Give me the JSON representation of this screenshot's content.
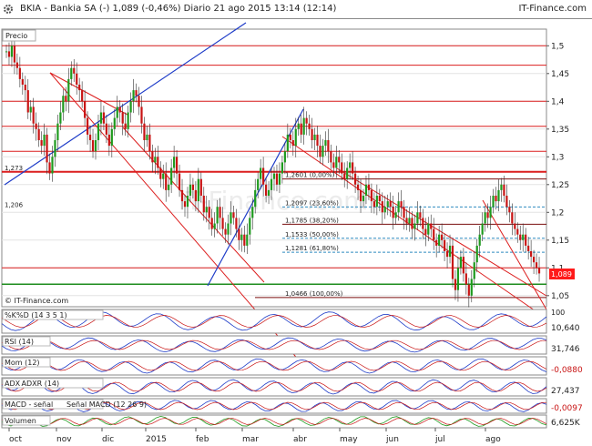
{
  "header": {
    "title": "BKIA - Bankia SA (-)    1,089 (-0,46%)    Diario  21 ago 2015 13:14 (12:14)",
    "brand": "IT-Finance.com"
  },
  "colors": {
    "candle_up": "#1e9a1e",
    "candle_down": "#c81414",
    "trend_red": "#dc1e1e",
    "trend_blue": "#1e3cc8",
    "fib_line": "#7a0f0f",
    "fib_dashed": "#2e8bc0",
    "last_price_bg": "#ff1a1a",
    "green_line": "#1e8c1e"
  },
  "chart_data": {
    "type": "candlestick",
    "title": "Precio",
    "ylim": [
      1.03,
      1.53
    ],
    "y_ticks": [
      1.05,
      1.1,
      1.15,
      1.2,
      1.25,
      1.3,
      1.35,
      1.4,
      1.45,
      1.5
    ],
    "y_tick_labels": [
      "1,05",
      "1,1",
      "1,15",
      "1,2",
      "1,25",
      "1,3",
      "1,35",
      "1,4",
      "1,45",
      "1,5"
    ],
    "x_tick_labels": [
      "oct",
      "nov",
      "dic",
      "2015",
      "feb",
      "mar",
      "abr",
      "may",
      "jun",
      "jul",
      "ago"
    ],
    "last_price": 1.089,
    "last_price_label": "1,089",
    "watermark": "IT-Finance.com",
    "left_levels": [
      {
        "label": "1,273",
        "value": 1.273
      },
      {
        "label": "1,206",
        "value": 1.206
      }
    ],
    "fibonacci": [
      {
        "label": "1,2601 (0,00%)",
        "value": 1.2601
      },
      {
        "label": "1,2097 (23,60%)",
        "value": 1.2097
      },
      {
        "label": "1,1785 (38,20%)",
        "value": 1.1785
      },
      {
        "label": "1,1533 (50,00%)",
        "value": 1.1533
      },
      {
        "label": "1,1281 (61,80%)",
        "value": 1.1281
      },
      {
        "label": "1,0466 (100,00%)",
        "value": 1.0466
      }
    ],
    "closes": [
      1.49,
      1.48,
      1.5,
      1.47,
      1.46,
      1.44,
      1.43,
      1.42,
      1.38,
      1.39,
      1.36,
      1.35,
      1.33,
      1.32,
      1.34,
      1.29,
      1.27,
      1.3,
      1.33,
      1.36,
      1.38,
      1.41,
      1.4,
      1.44,
      1.46,
      1.45,
      1.43,
      1.42,
      1.4,
      1.37,
      1.34,
      1.33,
      1.31,
      1.33,
      1.36,
      1.38,
      1.36,
      1.34,
      1.32,
      1.35,
      1.37,
      1.39,
      1.38,
      1.36,
      1.35,
      1.38,
      1.4,
      1.42,
      1.41,
      1.39,
      1.36,
      1.33,
      1.34,
      1.31,
      1.29,
      1.3,
      1.28,
      1.26,
      1.27,
      1.24,
      1.25,
      1.28,
      1.3,
      1.27,
      1.24,
      1.22,
      1.21,
      1.23,
      1.25,
      1.24,
      1.22,
      1.26,
      1.23,
      1.2,
      1.21,
      1.19,
      1.17,
      1.18,
      1.21,
      1.19,
      1.17,
      1.16,
      1.18,
      1.2,
      1.19,
      1.17,
      1.15,
      1.16,
      1.14,
      1.16,
      1.19,
      1.21,
      1.24,
      1.26,
      1.28,
      1.25,
      1.23,
      1.24,
      1.26,
      1.27,
      1.25,
      1.27,
      1.29,
      1.31,
      1.34,
      1.33,
      1.32,
      1.35,
      1.36,
      1.34,
      1.37,
      1.36,
      1.35,
      1.33,
      1.34,
      1.32,
      1.3,
      1.32,
      1.33,
      1.31,
      1.29,
      1.28,
      1.3,
      1.29,
      1.27,
      1.26,
      1.28,
      1.29,
      1.27,
      1.25,
      1.24,
      1.22,
      1.23,
      1.25,
      1.24,
      1.22,
      1.21,
      1.23,
      1.22,
      1.2,
      1.21,
      1.22,
      1.21,
      1.19,
      1.2,
      1.22,
      1.21,
      1.19,
      1.18,
      1.19,
      1.17,
      1.18,
      1.2,
      1.19,
      1.17,
      1.16,
      1.18,
      1.17,
      1.15,
      1.14,
      1.16,
      1.15,
      1.13,
      1.12,
      1.14,
      1.08,
      1.06,
      1.1,
      1.12,
      1.09,
      1.07,
      1.05,
      1.08,
      1.11,
      1.14,
      1.16,
      1.18,
      1.2,
      1.19,
      1.21,
      1.23,
      1.22,
      1.24,
      1.25,
      1.23,
      1.21,
      1.2,
      1.18,
      1.17,
      1.16,
      1.15,
      1.16,
      1.14,
      1.13,
      1.12,
      1.11,
      1.1,
      1.09
    ]
  },
  "indicators": [
    {
      "label": "%K",
      "label2": "%D (14 3 5 1)",
      "value": "10,640",
      "value_top": "100",
      "negative": false
    },
    {
      "label": "RSI (14)",
      "label2": "",
      "value": "31,746",
      "value_top": "",
      "negative": false
    },
    {
      "label": "Mom (12)",
      "label2": "",
      "value": "-0,0880",
      "value_top": "",
      "negative": true
    },
    {
      "label": "ADX",
      "label2": "ADXR (14)",
      "value": "27,437",
      "value_top": "",
      "negative": false
    },
    {
      "label": "MACD - señal",
      "label2": "Señal  MACD (12 26 9)",
      "value": "-0,0097",
      "value_top": "",
      "negative": true
    },
    {
      "label": "Volumen",
      "label2": "",
      "value": "6,625K",
      "value_top": "",
      "negative": false
    }
  ]
}
